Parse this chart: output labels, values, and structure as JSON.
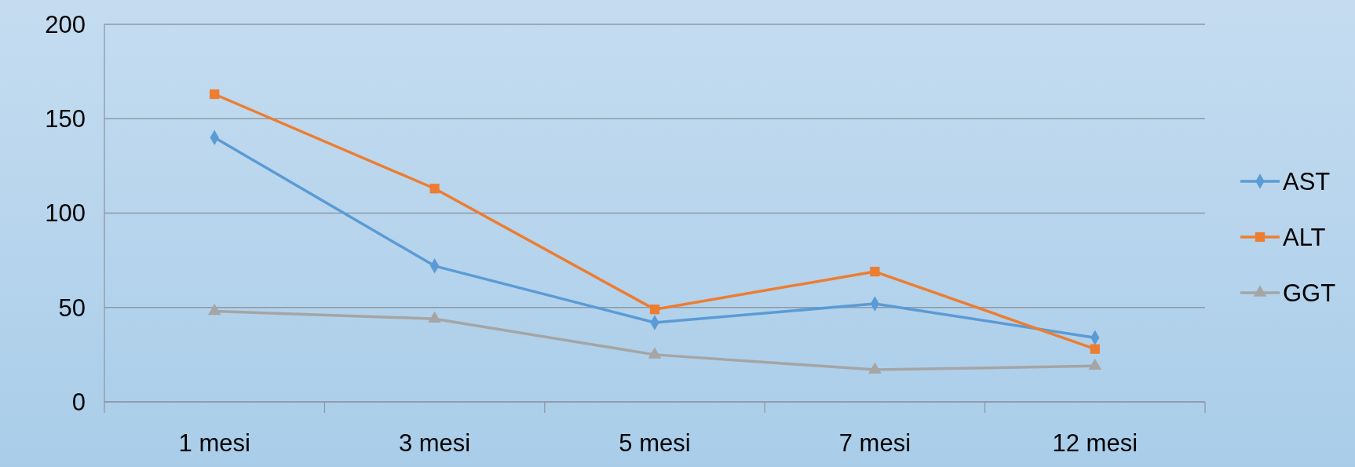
{
  "chart_data": {
    "type": "line",
    "categories": [
      "1 mesi",
      "3 mesi",
      "5 mesi",
      "7 mesi",
      "12 mesi"
    ],
    "series": [
      {
        "name": "AST",
        "color": "#5b9bd5",
        "marker": "diamond",
        "values": [
          140,
          72,
          42,
          52,
          34
        ]
      },
      {
        "name": "ALT",
        "color": "#ed7d31",
        "marker": "square",
        "values": [
          163,
          113,
          49,
          69,
          28
        ]
      },
      {
        "name": "GGT",
        "color": "#a5a5a5",
        "marker": "triangle",
        "values": [
          48,
          44,
          25,
          17,
          19
        ]
      }
    ],
    "ylim": [
      0,
      200
    ],
    "yticks": [
      0,
      50,
      100,
      150,
      200
    ],
    "grid": "y",
    "legend": "right"
  }
}
